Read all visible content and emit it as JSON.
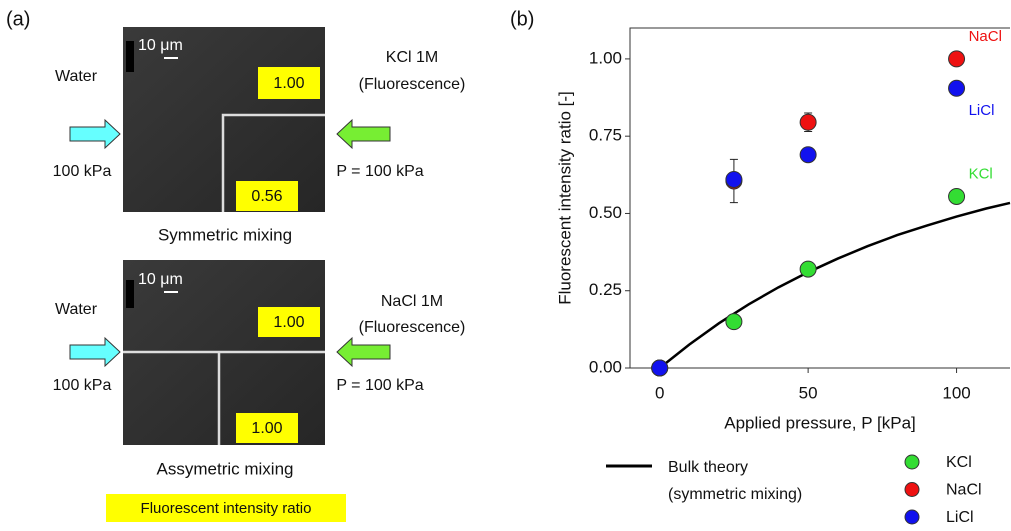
{
  "panel_a": {
    "label": "(a)",
    "images": [
      {
        "left_label": "Water",
        "left_pressure": "100 kPa",
        "right_label": "KCl 1M",
        "right_sub": "(Fluorescence)",
        "right_pressure": "P = 100 kPa",
        "scale": "10 μm",
        "top_value": "1.00",
        "bottom_value": "0.56",
        "caption": "Symmetric mixing"
      },
      {
        "left_label": "Water",
        "left_pressure": "100 kPa",
        "right_label": "NaCl 1M",
        "right_sub": "(Fluorescence)",
        "right_pressure": "P = 100 kPa",
        "scale": "10 μm",
        "top_value": "1.00",
        "bottom_value": "1.00",
        "caption": "Assymetric mixing"
      }
    ],
    "legend_box": "Fluorescent intensity ratio"
  },
  "chart_data": {
    "type": "scatter",
    "label": "(b)",
    "xlabel": "Applied pressure, P [kPa]",
    "ylabel": "Fluorescent intensity ratio [-]",
    "xlim": [
      -10,
      118
    ],
    "ylim": [
      0,
      1.1
    ],
    "xticks": [
      0,
      50,
      100
    ],
    "yticks": [
      {
        "value": 0,
        "label": "0.00"
      },
      {
        "value": 0.25,
        "label": "0.25"
      },
      {
        "value": 0.5,
        "label": "0.50"
      },
      {
        "value": 0.75,
        "label": "0.75"
      },
      {
        "value": 1,
        "label": "1.00"
      }
    ],
    "line": {
      "name": "Bulk theory",
      "note": "(symmetric mixing)",
      "color": "#000000",
      "x": [
        0,
        10,
        20,
        30,
        40,
        50,
        60,
        70,
        80,
        90,
        100,
        110,
        118
      ],
      "values": [
        0,
        0.076,
        0.145,
        0.206,
        0.261,
        0.31,
        0.354,
        0.394,
        0.43,
        0.461,
        0.49,
        0.516,
        0.534
      ]
    },
    "series": [
      {
        "name": "KCl",
        "color": "#33dd33",
        "x": [
          0,
          25,
          50,
          100
        ],
        "values": [
          0,
          0.15,
          0.32,
          0.555
        ]
      },
      {
        "name": "NaCl",
        "color": "#ee1111",
        "x": [
          0,
          25,
          50,
          100
        ],
        "values": [
          0,
          0.605,
          0.795,
          1.0
        ],
        "errors": [
          null,
          0.07,
          0.03,
          null
        ]
      },
      {
        "name": "LiCl",
        "color": "#1111ee",
        "x": [
          0,
          25,
          50,
          100
        ],
        "values": [
          0,
          0.61,
          0.69,
          0.905
        ]
      }
    ]
  }
}
